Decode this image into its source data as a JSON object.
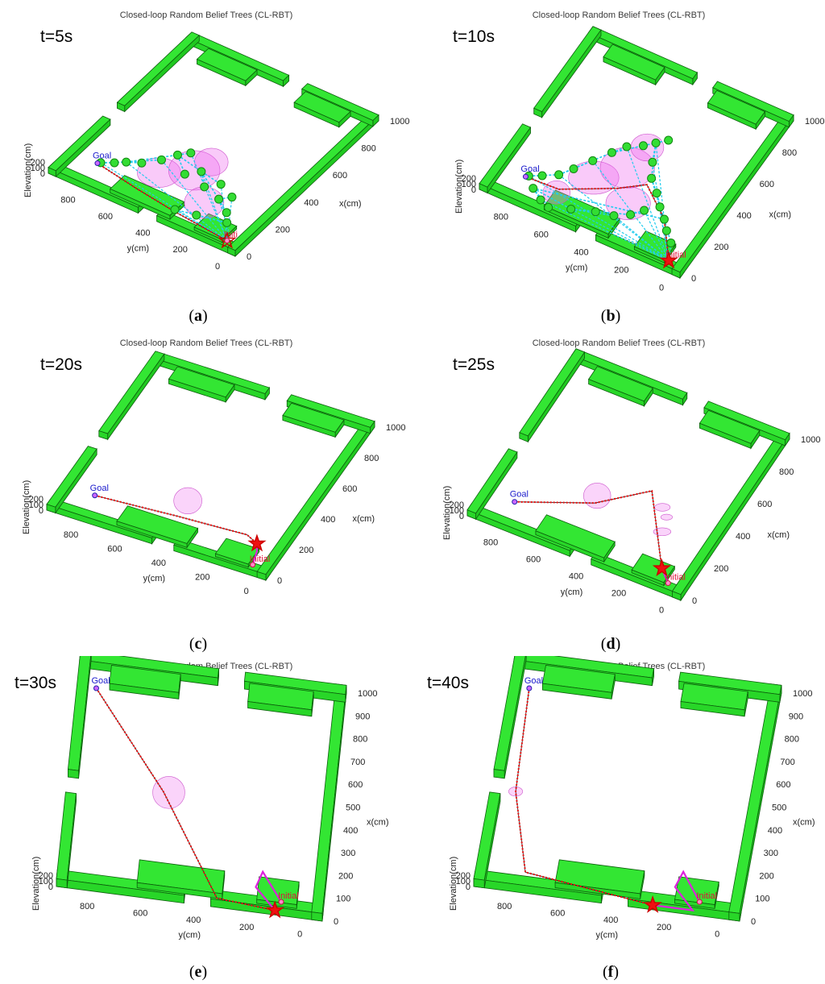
{
  "chart_data": [
    {
      "type": "scatter",
      "panel": "a",
      "title": "Closed-loop Random Belief Trees (CL-RBT)",
      "time_label": "t=5s",
      "xlabel": "x(cm)",
      "ylabel": "y(cm)",
      "zlabel": "Elevation(cm)",
      "x_ticks": [
        "0",
        "200",
        "400",
        "600",
        "800",
        "1000"
      ],
      "y_ticks": [
        "0",
        "200",
        "400",
        "600",
        "800"
      ],
      "z_ticks": [
        "0",
        "100",
        "200"
      ],
      "goal_label": "Goal",
      "initial_label": "Initi",
      "caption": "a",
      "goal": [
        160,
        860
      ],
      "initial": [
        60,
        90
      ],
      "robot": [
        60,
        90
      ],
      "path": [
        [
          160,
          860
        ],
        [
          120,
          620
        ],
        [
          90,
          400
        ],
        [
          60,
          90
        ]
      ],
      "belief_nodes": [
        [
          170,
          850
        ],
        [
          200,
          800
        ],
        [
          230,
          760
        ],
        [
          260,
          700
        ],
        [
          320,
          640
        ],
        [
          380,
          600
        ],
        [
          420,
          560
        ],
        [
          300,
          500
        ],
        [
          350,
          450
        ],
        [
          280,
          380
        ],
        [
          330,
          330
        ],
        [
          250,
          280
        ],
        [
          290,
          240
        ],
        [
          200,
          200
        ],
        [
          150,
          160
        ],
        [
          120,
          300
        ],
        [
          100,
          400
        ]
      ],
      "ellipses": [
        [
          250,
          600,
          220,
          150
        ],
        [
          340,
          480,
          260,
          200
        ],
        [
          200,
          320,
          200,
          160
        ],
        [
          420,
          450,
          170,
          140
        ]
      ]
    },
    {
      "type": "scatter",
      "panel": "b",
      "title": "Closed-loop Random Belief Trees (CL-RBT)",
      "time_label": "t=10s",
      "xlabel": "x(cm)",
      "ylabel": "y(cm)",
      "zlabel": "Elevation(cm)",
      "x_ticks": [
        "0",
        "200",
        "400",
        "600",
        "800",
        "1000"
      ],
      "y_ticks": [
        "0",
        "200",
        "400",
        "600",
        "800"
      ],
      "z_ticks": [
        "0",
        "100",
        "200"
      ],
      "goal_label": "Goal",
      "initial_label": "Initial",
      "caption": "b",
      "goal": [
        160,
        860
      ],
      "initial": [
        60,
        90
      ],
      "robot": [
        60,
        90
      ],
      "path": [
        [
          160,
          860
        ],
        [
          170,
          700
        ],
        [
          300,
          480
        ],
        [
          380,
          380
        ],
        [
          250,
          220
        ],
        [
          60,
          90
        ]
      ],
      "belief_nodes": [
        [
          170,
          850
        ],
        [
          200,
          800
        ],
        [
          240,
          740
        ],
        [
          300,
          700
        ],
        [
          380,
          650
        ],
        [
          460,
          600
        ],
        [
          520,
          560
        ],
        [
          560,
          500
        ],
        [
          600,
          460
        ],
        [
          640,
          420
        ],
        [
          500,
          420
        ],
        [
          420,
          380
        ],
        [
          360,
          320
        ],
        [
          300,
          270
        ],
        [
          250,
          220
        ],
        [
          200,
          180
        ],
        [
          150,
          130
        ],
        [
          120,
          800
        ],
        [
          80,
          740
        ],
        [
          60,
          690
        ],
        [
          100,
          600
        ],
        [
          140,
          500
        ],
        [
          160,
          420
        ],
        [
          200,
          360
        ],
        [
          250,
          320
        ]
      ],
      "ellipses": [
        [
          300,
          600,
          260,
          170
        ],
        [
          420,
          500,
          280,
          210
        ],
        [
          250,
          400,
          230,
          170
        ],
        [
          560,
          480,
          170,
          140
        ],
        [
          150,
          700,
          140,
          120
        ]
      ]
    },
    {
      "type": "line",
      "panel": "c",
      "title": "Closed-loop Random Belief Trees (CL-RBT)",
      "time_label": "t=20s",
      "xlabel": "x(cm)",
      "ylabel": "y(cm)",
      "zlabel": "Elevation(cm)",
      "x_ticks": [
        "0",
        "200",
        "400",
        "600",
        "800",
        "1000"
      ],
      "y_ticks": [
        "0",
        "200",
        "400",
        "600",
        "800"
      ],
      "z_ticks": [
        "0",
        "100",
        "200"
      ],
      "goal_label": "Goal",
      "initial_label": "Initial",
      "caption": "c",
      "goal": [
        160,
        860
      ],
      "initial": [
        60,
        90
      ],
      "robot": [
        180,
        130
      ],
      "path": [
        [
          160,
          860
        ],
        [
          190,
          500
        ],
        [
          210,
          190
        ],
        [
          180,
          130
        ]
      ],
      "executed": [
        [
          60,
          90
        ],
        [
          140,
          110
        ],
        [
          180,
          130
        ]
      ],
      "ellipses": [
        [
          290,
          500,
          150,
          140
        ]
      ]
    },
    {
      "type": "line",
      "panel": "d",
      "title": "Closed-loop Random Belief Trees (CL-RBT)",
      "time_label": "t=25s",
      "xlabel": "x(cm)",
      "ylabel": "y(cm)",
      "zlabel": "Elevation(cm)",
      "x_ticks": [
        "0",
        "200",
        "400",
        "600",
        "800",
        "1000"
      ],
      "y_ticks": [
        "0",
        "200",
        "400",
        "600",
        "800"
      ],
      "z_ticks": [
        "0",
        "100",
        "200"
      ],
      "goal_label": "Goal",
      "initial_label": "Initial",
      "caption": "d",
      "goal": [
        160,
        860
      ],
      "initial": [
        60,
        90
      ],
      "robot": [
        120,
        150
      ],
      "path": [
        [
          160,
          860
        ],
        [
          310,
          560
        ],
        [
          480,
          380
        ],
        [
          120,
          150
        ]
      ],
      "executed": [
        [
          60,
          90
        ],
        [
          120,
          150
        ]
      ],
      "ellipses": [
        [
          350,
          570,
          140,
          130
        ],
        [
          420,
          300,
          80,
          40
        ],
        [
          300,
          240,
          90,
          40
        ],
        [
          380,
          260,
          60,
          30
        ]
      ]
    },
    {
      "type": "line",
      "panel": "e",
      "title": "Closed-loop Random Belief Trees (CL-RBT)",
      "time_label": "t=30s",
      "xlabel": "x(cm)",
      "ylabel": "y(cm)",
      "zlabel": "Elevation(cm)",
      "x_ticks": [
        "0",
        "100",
        "200",
        "300",
        "400",
        "500",
        "600",
        "700",
        "800",
        "900",
        "1000"
      ],
      "y_ticks": [
        "0",
        "200",
        "400",
        "600",
        "800"
      ],
      "z_ticks": [
        "0",
        "100",
        "200"
      ],
      "goal_label": "Goal",
      "initial_label": "Initial",
      "caption": "e",
      "goal": [
        880,
        930
      ],
      "initial": [
        60,
        160
      ],
      "robot": [
        20,
        180
      ],
      "path": [
        [
          880,
          930
        ],
        [
          470,
          640
        ],
        [
          40,
          400
        ],
        [
          20,
          180
        ]
      ],
      "executed": [
        [
          60,
          160
        ],
        [
          180,
          240
        ],
        [
          110,
          260
        ],
        [
          20,
          180
        ]
      ],
      "ellipses": [
        [
          470,
          620,
          140,
          140
        ]
      ]
    },
    {
      "type": "line",
      "panel": "f",
      "title": "Closed-loop Random Belief Trees (CL-RBT)",
      "time_label": "t=40s",
      "xlabel": "x(cm)",
      "ylabel": "y(cm)",
      "zlabel": "Elevation(cm)",
      "x_ticks": [
        "0",
        "100",
        "200",
        "300",
        "400",
        "500",
        "600",
        "700",
        "800",
        "900",
        "1000"
      ],
      "y_ticks": [
        "0",
        "200",
        "400",
        "600",
        "800"
      ],
      "z_ticks": [
        "0",
        "100",
        "200"
      ],
      "goal_label": "Goal",
      "initial_label": "Initial",
      "caption": "f",
      "goal": [
        880,
        930
      ],
      "initial": [
        60,
        160
      ],
      "robot": [
        20,
        330
      ],
      "path": [
        [
          880,
          930
        ],
        [
          430,
          910
        ],
        [
          90,
          820
        ],
        [
          20,
          330
        ]
      ],
      "executed": [
        [
          60,
          160
        ],
        [
          180,
          240
        ],
        [
          110,
          260
        ],
        [
          20,
          180
        ],
        [
          20,
          330
        ]
      ],
      "ellipses": [
        [
          430,
          910,
          60,
          40
        ]
      ]
    }
  ]
}
